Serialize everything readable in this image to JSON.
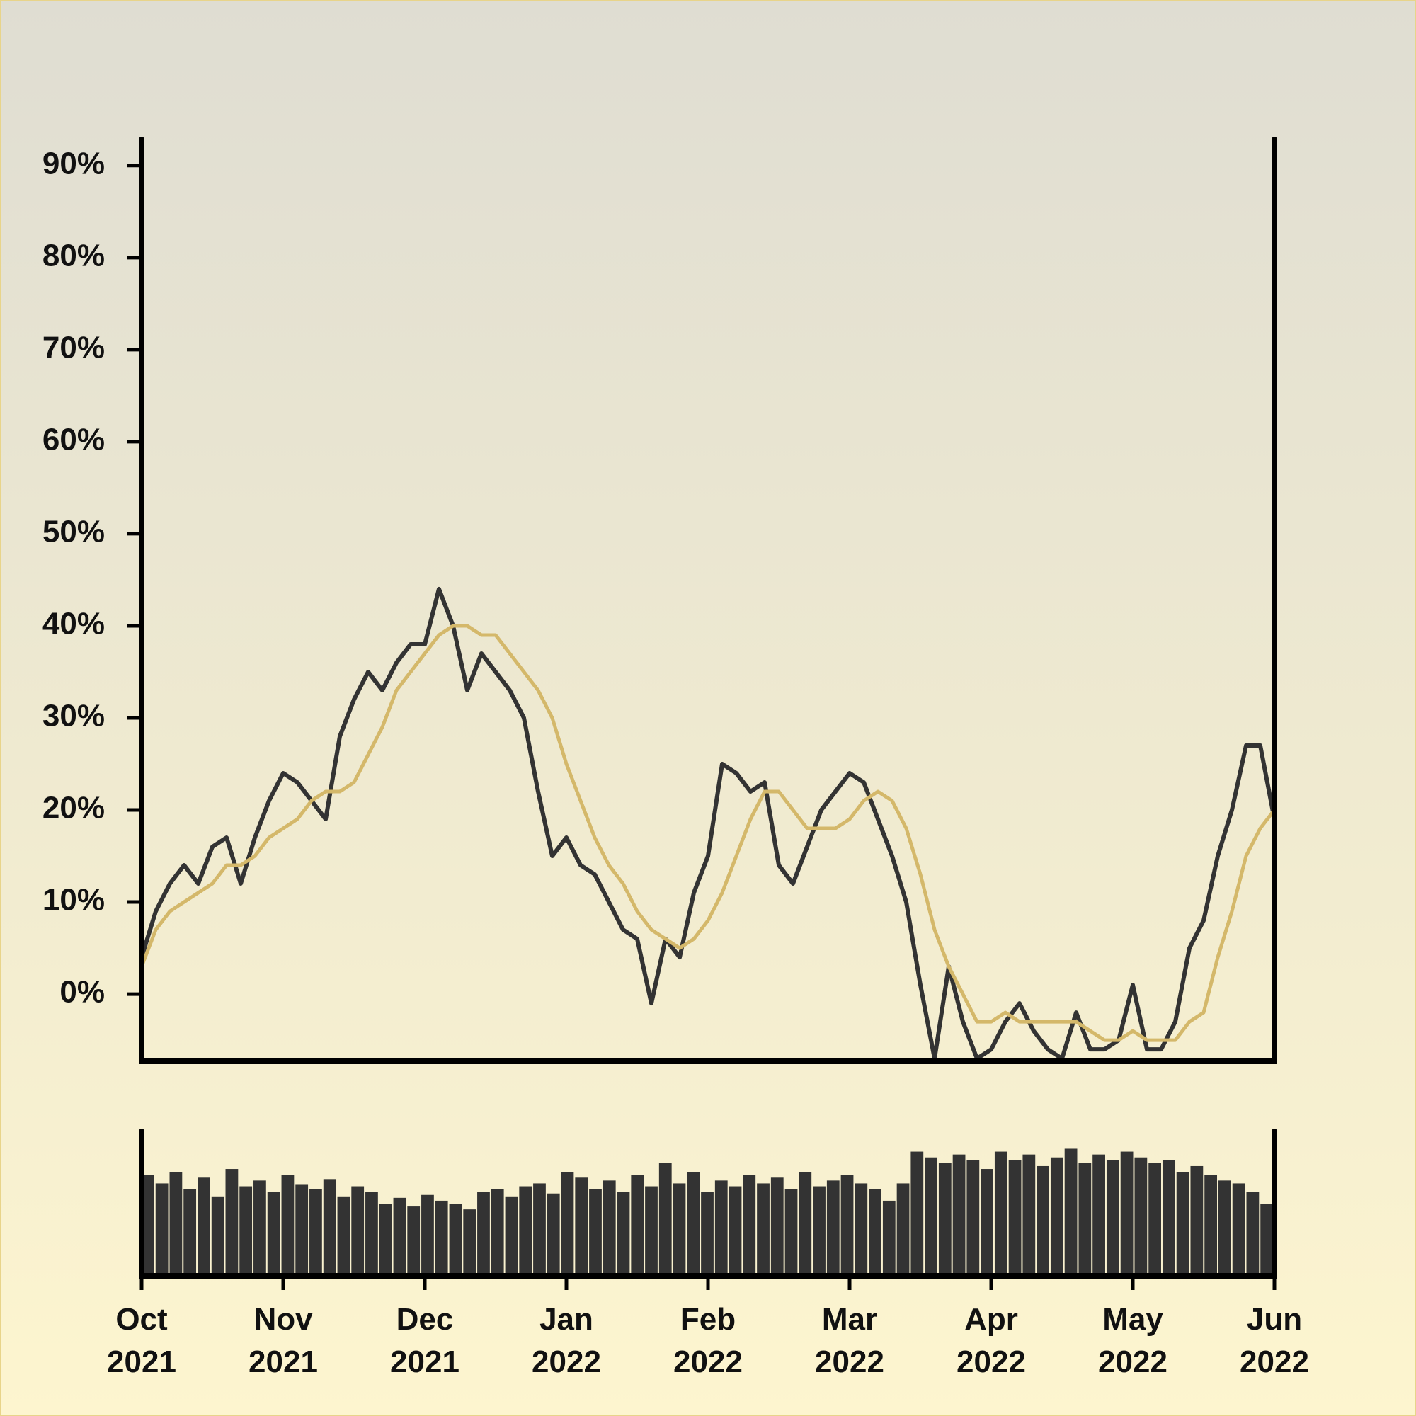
{
  "chart_data": {
    "type": "line",
    "xlim": [
      "2021-10",
      "2022-06"
    ],
    "xticks": [
      {
        "value": "2021-10",
        "label": "Oct 2021"
      },
      {
        "value": "2021-11",
        "label": "Nov 2021"
      },
      {
        "value": "2021-12",
        "label": "Dec 2021"
      },
      {
        "value": "2022-01",
        "label": "Jan 2022"
      },
      {
        "value": "2022-02",
        "label": "Feb 2022"
      },
      {
        "value": "2022-03",
        "label": "Mar 2022"
      },
      {
        "value": "2022-04",
        "label": "Apr 2022"
      },
      {
        "value": "2022-05",
        "label": "May 2022"
      },
      {
        "value": "2022-06",
        "label": "Jun 2022"
      }
    ],
    "ylim": [
      -7.3,
      92.6
    ],
    "yticks": [
      {
        "value": 0,
        "label": "0%"
      },
      {
        "value": 10,
        "label": "10%"
      },
      {
        "value": 20,
        "label": "20%"
      },
      {
        "value": 30,
        "label": "30%"
      },
      {
        "value": 40,
        "label": "40%"
      },
      {
        "value": 50,
        "label": "50%"
      },
      {
        "value": 60,
        "label": "60%"
      },
      {
        "value": 70,
        "label": "70%"
      },
      {
        "value": 80,
        "label": "80%"
      },
      {
        "value": 90,
        "label": "90%"
      }
    ],
    "series": [
      {
        "color": "#333333",
        "values": [
          4,
          9,
          12,
          14,
          12,
          16,
          17,
          12,
          17,
          21,
          24,
          23,
          21,
          19,
          28,
          32,
          35,
          33,
          36,
          38,
          38,
          44,
          40,
          33,
          37,
          35,
          33,
          30,
          22,
          15,
          17,
          14,
          13,
          10,
          7,
          6,
          -1,
          6,
          4,
          11,
          15,
          25,
          24,
          22,
          23,
          14,
          12,
          16,
          20,
          22,
          24,
          23,
          19,
          15,
          10,
          1,
          -7,
          3,
          -3,
          -7,
          -6,
          -3,
          -1,
          -4,
          -6,
          -7,
          -2,
          -6,
          -6,
          -5,
          1,
          -6,
          -6,
          -3,
          5,
          8,
          15,
          20,
          27,
          27,
          19
        ]
      },
      {
        "color": "#d4b86a",
        "values": [
          3,
          7,
          9,
          10,
          11,
          12,
          14,
          14,
          15,
          17,
          18,
          19,
          21,
          22,
          22,
          23,
          26,
          29,
          33,
          35,
          37,
          39,
          40,
          40,
          39,
          39,
          37,
          35,
          33,
          30,
          25,
          21,
          17,
          14,
          12,
          9,
          7,
          6,
          5,
          6,
          8,
          11,
          15,
          19,
          22,
          22,
          20,
          18,
          18,
          18,
          19,
          21,
          22,
          21,
          18,
          13,
          7,
          3,
          0,
          -3,
          -3,
          -2,
          -3,
          -3,
          -3,
          -3,
          -3,
          -4,
          -5,
          -5,
          -4,
          -5,
          -5,
          -5,
          -3,
          -2,
          4,
          9,
          15,
          18,
          20
        ]
      }
    ],
    "volume": {
      "color": "#333333",
      "ylim": [
        0,
        100
      ],
      "values": [
        70,
        64,
        72,
        60,
        68,
        55,
        74,
        62,
        66,
        58,
        70,
        63,
        60,
        67,
        55,
        62,
        58,
        50,
        54,
        48,
        56,
        52,
        50,
        46,
        58,
        60,
        55,
        62,
        64,
        57,
        72,
        68,
        60,
        66,
        58,
        70,
        62,
        78,
        64,
        72,
        58,
        66,
        62,
        70,
        64,
        68,
        60,
        72,
        62,
        66,
        70,
        64,
        60,
        52,
        64,
        86,
        82,
        78,
        84,
        80,
        74,
        86,
        80,
        84,
        76,
        82,
        88,
        78,
        84,
        80,
        86,
        82,
        78,
        80,
        72,
        76,
        70,
        66,
        64,
        58,
        50
      ]
    }
  }
}
